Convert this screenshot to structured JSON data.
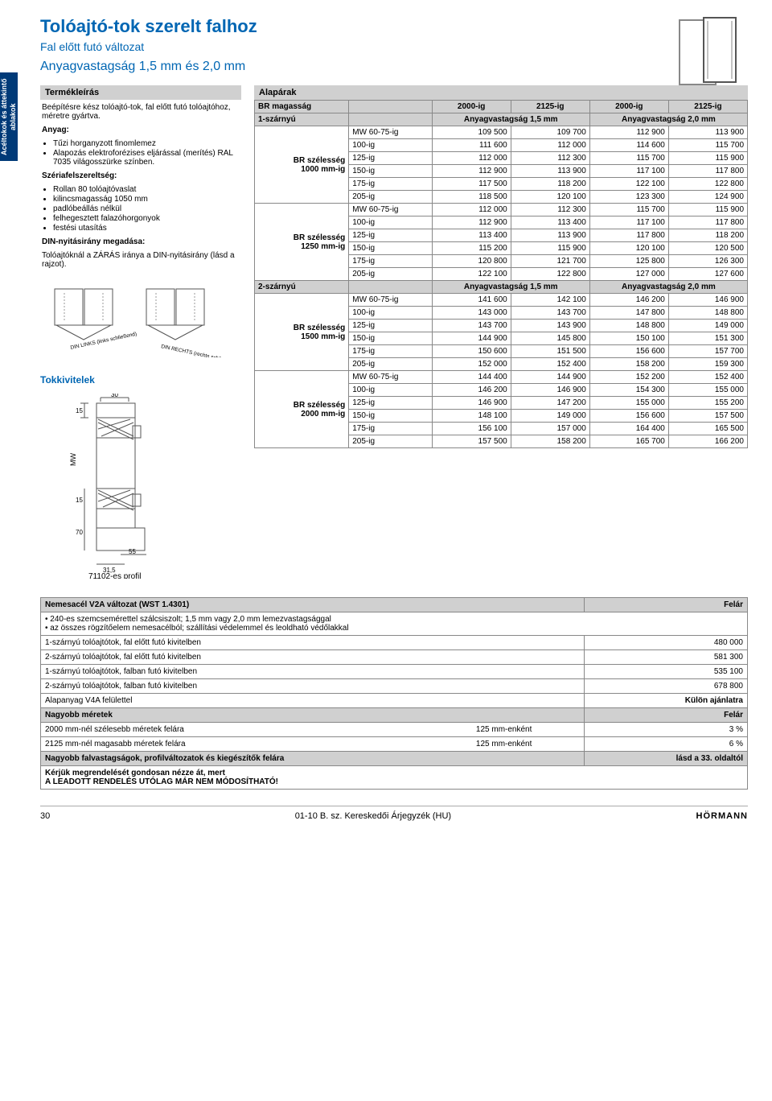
{
  "sideTab": "Acéltokok és\náttekintő ablakok",
  "title": "Tolóajtó-tok szerelt falhoz",
  "subtitle": "Fal előtt futó változat",
  "subtitle2": "Anyagvastagság 1,5 mm és 2,0 mm",
  "termekleirasHead": "Termékleírás",
  "desc_intro": "Beépítésre kész tolóajtó-tok, fal előtt futó tolóajtóhoz, méretre gyártva.",
  "anyag_head": "Anyag:",
  "anyag_items": [
    "Tűzi horganyzott finomlemez",
    "Alapozás elektroforézises eljárással (merítés) RAL 7035 világosszürke színben."
  ],
  "szeria_head": "Szériafelszereltség:",
  "szeria_items": [
    "Rollan 80 tolóajtóvaslat",
    "kilincsmagasság 1050 mm",
    "padlóbeállás nélkül",
    "felhegesztett falazóhorgonyok",
    "festési utasítás"
  ],
  "din_head": "DIN-nyitásirány megadása:",
  "din_text": "Tolóajtóknál a ZÁRÁS iránya a DIN-nyitásirány (lásd a rajzot).",
  "din_left": "DIN LINKS\n(links schließend)",
  "din_right": "DIN RECHTS\n(rechts schließend)",
  "tokkivitelek": "Tokkivitelek",
  "profil_label": "71102-es profil",
  "profil_dims": {
    "d30": "30",
    "d15a": "15",
    "d15b": "15",
    "d70": "70",
    "d55": "55",
    "d315": "31,5",
    "mw": "MW"
  },
  "alap_head": "Alapárak",
  "price_headers": {
    "br_mag": "BR magasság",
    "c1": "2000-ig",
    "c2": "2125-ig",
    "c3": "2000-ig",
    "c4": "2125-ig",
    "egysz": "1-szárnyú",
    "av15": "Anyagvastagság 1,5 mm",
    "av20": "Anyagvastagság 2,0 mm",
    "ketsz": "2-szárnyú",
    "brsz1000": "BR szélesség\n1000 mm-ig",
    "brsz1250": "BR szélesség\n1250 mm-ig",
    "brsz1500": "BR szélesség\n1500 mm-ig",
    "brsz2000": "BR szélesség\n2000 mm-ig"
  },
  "rows_labels": [
    "MW 60-75-ig",
    "100-ig",
    "125-ig",
    "150-ig",
    "175-ig",
    "205-ig"
  ],
  "block1": [
    [
      "109 500",
      "109 700",
      "112 900",
      "113 900"
    ],
    [
      "111 600",
      "112 000",
      "114 600",
      "115 700"
    ],
    [
      "112 000",
      "112 300",
      "115 700",
      "115 900"
    ],
    [
      "112 900",
      "113 900",
      "117 100",
      "117 800"
    ],
    [
      "117 500",
      "118 200",
      "122 100",
      "122 800"
    ],
    [
      "118 500",
      "120 100",
      "123 300",
      "124 900"
    ]
  ],
  "block2": [
    [
      "112 000",
      "112 300",
      "115 700",
      "115 900"
    ],
    [
      "112 900",
      "113 400",
      "117 100",
      "117 800"
    ],
    [
      "113 400",
      "113 900",
      "117 800",
      "118 200"
    ],
    [
      "115 200",
      "115 900",
      "120 100",
      "120 500"
    ],
    [
      "120 800",
      "121 700",
      "125 800",
      "126 300"
    ],
    [
      "122 100",
      "122 800",
      "127 000",
      "127 600"
    ]
  ],
  "block3": [
    [
      "141 600",
      "142 100",
      "146 200",
      "146 900"
    ],
    [
      "143 000",
      "143 700",
      "147 800",
      "148 800"
    ],
    [
      "143 700",
      "143 900",
      "148 800",
      "149 000"
    ],
    [
      "144 900",
      "145 800",
      "150 100",
      "151 300"
    ],
    [
      "150 600",
      "151 500",
      "156 600",
      "157 700"
    ],
    [
      "152 000",
      "152 400",
      "158 200",
      "159 300"
    ]
  ],
  "block4": [
    [
      "144 400",
      "144 900",
      "152 200",
      "152 400"
    ],
    [
      "146 200",
      "146 900",
      "154 300",
      "155 000"
    ],
    [
      "146 900",
      "147 200",
      "155 000",
      "155 200"
    ],
    [
      "148 100",
      "149 000",
      "156 600",
      "157 500"
    ],
    [
      "156 100",
      "157 000",
      "164 400",
      "165 500"
    ],
    [
      "157 500",
      "158 200",
      "165 700",
      "166 200"
    ]
  ],
  "info": {
    "v2a_head": "Nemesacél V2A változat (WST 1.4301)",
    "felar": "Felár",
    "b1": "240-es szemcsemérettel szálcsiszolt; 1,5 mm vagy 2,0 mm lemezvastagsággal",
    "b2": "az összes rögzítőelem nemesacélból; szállítási védelemmel és leoldható védőlakkal",
    "r1l": "1-szárnyú tolóajtótok, fal előtt futó kivitelben",
    "r1v": "480 000",
    "r2l": "2-szárnyú tolóajtótok, fal előtt futó kivitelben",
    "r2v": "581 300",
    "r3l": "1-szárnyú tolóajtótok, falban futó kivitelben",
    "r3v": "535 100",
    "r4l": "2-szárnyú tolóajtótok, falban futó kivitelben",
    "r4v": "678 800",
    "alap_v4a": "Alapanyag V4A felülettel",
    "kulon": "Külön ajánlatra",
    "nagy_head": "Nagyobb méretek",
    "nm1l": "2000 mm-nél szélesebb méretek felára",
    "nm1m": "125 mm-enként",
    "nm1v": "3 %",
    "nm2l": "2125 mm-nél magasabb méretek felára",
    "nm2m": "125 mm-enként",
    "nm2v": "6 %",
    "nagyfal": "Nagyobb falvastagságok, profilváltozatok és kiegészítők felára",
    "lasd": "lásd a 33. oldaltól",
    "warn1": "Kérjük megrendelését gondosan nézze át, mert",
    "warn2": "A LEADOTT RENDELÉS UTÓLAG MÁR NEM MÓDOSÍTHATÓ!"
  },
  "footer": {
    "page": "30",
    "mid": "01-10 B. sz. Kereskedői Árjegyzék (HU)",
    "logo": "HÖRMANN"
  }
}
